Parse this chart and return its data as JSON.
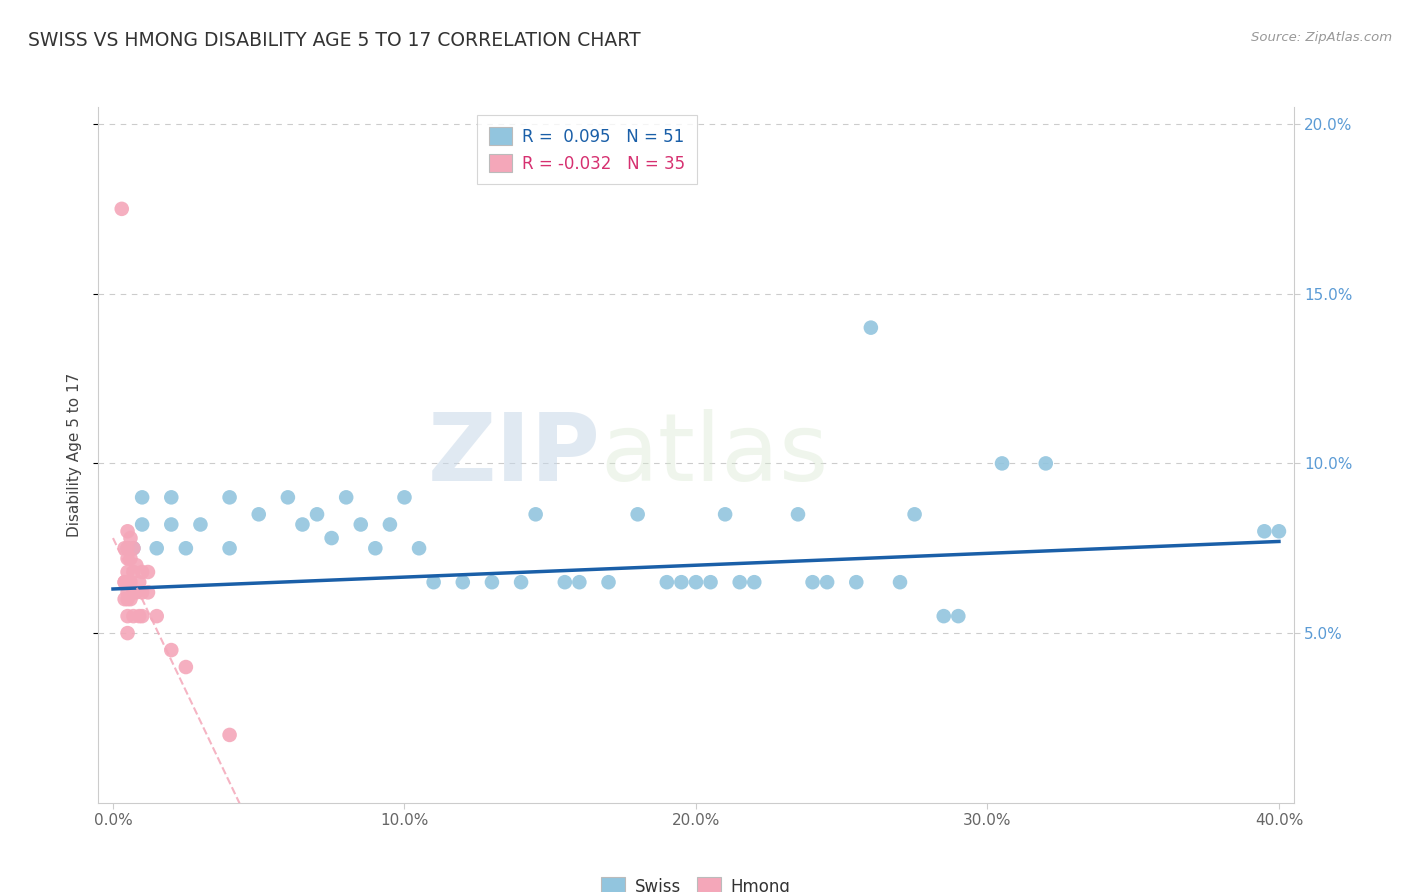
{
  "title": "SWISS VS HMONG DISABILITY AGE 5 TO 17 CORRELATION CHART",
  "source_text": "Source: ZipAtlas.com",
  "ylabel": "Disability Age 5 to 17",
  "xlim": [
    -0.005,
    0.405
  ],
  "ylim": [
    0.0,
    0.205
  ],
  "xtick_labels": [
    "0.0%",
    "10.0%",
    "20.0%",
    "30.0%",
    "40.0%"
  ],
  "xtick_vals": [
    0.0,
    0.1,
    0.2,
    0.3,
    0.4
  ],
  "ytick_labels": [
    "5.0%",
    "10.0%",
    "15.0%",
    "20.0%"
  ],
  "ytick_vals": [
    0.05,
    0.1,
    0.15,
    0.2
  ],
  "swiss_color": "#92c5de",
  "hmong_color": "#f4a7b9",
  "swiss_line_color": "#1a5fa8",
  "hmong_line_color": "#f4a7b9",
  "legend_swiss_r": "0.095",
  "legend_swiss_n": "51",
  "legend_hmong_r": "-0.032",
  "legend_hmong_n": "35",
  "watermark_zip": "ZIP",
  "watermark_atlas": "atlas",
  "swiss_x": [
    0.005,
    0.007,
    0.01,
    0.01,
    0.015,
    0.02,
    0.02,
    0.025,
    0.03,
    0.04,
    0.04,
    0.05,
    0.06,
    0.065,
    0.07,
    0.075,
    0.08,
    0.085,
    0.09,
    0.095,
    0.1,
    0.105,
    0.11,
    0.12,
    0.13,
    0.14,
    0.145,
    0.155,
    0.16,
    0.17,
    0.18,
    0.19,
    0.195,
    0.2,
    0.205,
    0.21,
    0.215,
    0.22,
    0.235,
    0.24,
    0.245,
    0.255,
    0.26,
    0.27,
    0.275,
    0.285,
    0.29,
    0.305,
    0.32,
    0.395,
    0.4
  ],
  "swiss_y": [
    0.075,
    0.075,
    0.082,
    0.09,
    0.075,
    0.082,
    0.09,
    0.075,
    0.082,
    0.09,
    0.075,
    0.085,
    0.09,
    0.082,
    0.085,
    0.078,
    0.09,
    0.082,
    0.075,
    0.082,
    0.09,
    0.075,
    0.065,
    0.065,
    0.065,
    0.065,
    0.085,
    0.065,
    0.065,
    0.065,
    0.085,
    0.065,
    0.065,
    0.065,
    0.065,
    0.085,
    0.065,
    0.065,
    0.085,
    0.065,
    0.065,
    0.065,
    0.14,
    0.065,
    0.085,
    0.055,
    0.055,
    0.1,
    0.1,
    0.08,
    0.08
  ],
  "hmong_x": [
    0.003,
    0.004,
    0.004,
    0.004,
    0.004,
    0.005,
    0.005,
    0.005,
    0.005,
    0.005,
    0.005,
    0.005,
    0.005,
    0.005,
    0.006,
    0.006,
    0.006,
    0.006,
    0.007,
    0.007,
    0.007,
    0.007,
    0.008,
    0.008,
    0.009,
    0.009,
    0.01,
    0.01,
    0.01,
    0.012,
    0.012,
    0.015,
    0.02,
    0.025,
    0.04
  ],
  "hmong_y": [
    0.175,
    0.075,
    0.065,
    0.065,
    0.06,
    0.08,
    0.075,
    0.072,
    0.068,
    0.065,
    0.062,
    0.06,
    0.055,
    0.05,
    0.078,
    0.072,
    0.065,
    0.06,
    0.075,
    0.068,
    0.062,
    0.055,
    0.07,
    0.062,
    0.065,
    0.055,
    0.068,
    0.062,
    0.055,
    0.068,
    0.062,
    0.055,
    0.045,
    0.04,
    0.02
  ]
}
